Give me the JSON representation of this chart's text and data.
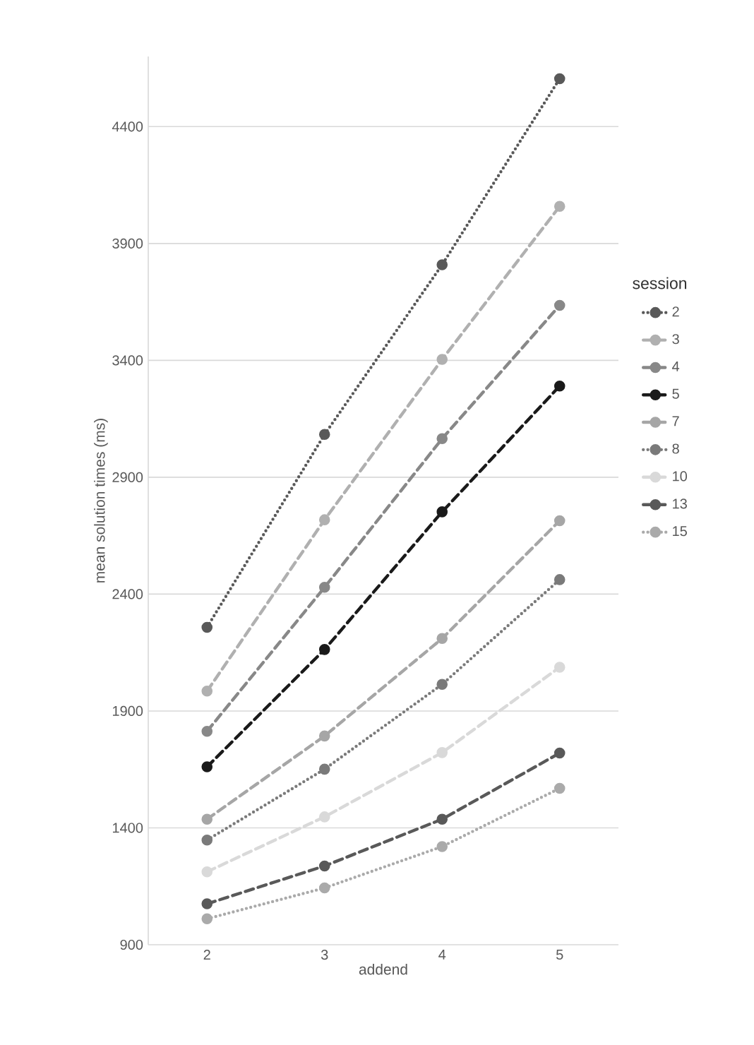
{
  "chart_data": {
    "type": "line",
    "xlabel": "addend",
    "ylabel": "mean solution times (ms)",
    "legend_title": "session",
    "categories": [
      "2",
      "3",
      "4",
      "5"
    ],
    "ylim": [
      900,
      4700
    ],
    "yticks": [
      900,
      1400,
      1900,
      2400,
      2900,
      3400,
      3900,
      4400
    ],
    "grid": "y",
    "legend": "right",
    "marker": "circle",
    "series": [
      {
        "name": "2",
        "color": "#595959",
        "line_style": "dotted",
        "values": [
          2258,
          3083,
          3809,
          4605
        ]
      },
      {
        "name": "3",
        "color": "#b0b0b0",
        "line_style": "dashed",
        "values": [
          1985,
          2718,
          3404,
          4059
        ]
      },
      {
        "name": "4",
        "color": "#888888",
        "line_style": "dashed",
        "values": [
          1813,
          2429,
          3065,
          3635
        ]
      },
      {
        "name": "5",
        "color": "#1a1a1a",
        "line_style": "dashed",
        "values": [
          1661,
          2163,
          2752,
          3290
        ]
      },
      {
        "name": "7",
        "color": "#a6a6a6",
        "line_style": "dashed",
        "values": [
          1437,
          1793,
          2210,
          2714
        ]
      },
      {
        "name": "8",
        "color": "#7a7a7a",
        "line_style": "dotted",
        "values": [
          1348,
          1651,
          2014,
          2462
        ]
      },
      {
        "name": "10",
        "color": "#d9d9d9",
        "line_style": "dashed",
        "values": [
          1212,
          1447,
          1722,
          2087
        ]
      },
      {
        "name": "13",
        "color": "#595959",
        "line_style": "dashed",
        "values": [
          1075,
          1237,
          1437,
          1720
        ]
      },
      {
        "name": "15",
        "color": "#aaaaaa",
        "line_style": "dotted",
        "values": [
          1011,
          1143,
          1320,
          1569
        ]
      }
    ]
  }
}
